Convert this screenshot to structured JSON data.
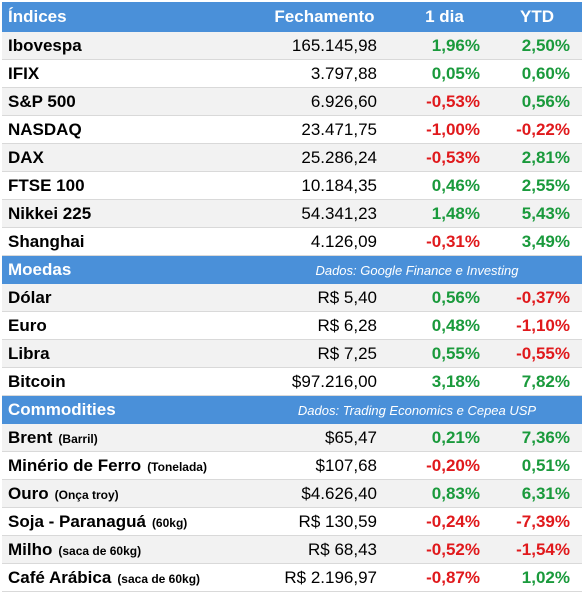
{
  "header": {
    "name": "Índices",
    "close": "Fechamento",
    "day": "1 dia",
    "ytd": "YTD"
  },
  "indices": [
    {
      "name": "Ibovespa",
      "close": "165.145,98",
      "day": "1,96%",
      "ytd": "2,50%"
    },
    {
      "name": "IFIX",
      "close": "3.797,88",
      "day": "0,05%",
      "ytd": "0,60%"
    },
    {
      "name": "S&P 500",
      "close": "6.926,60",
      "day": "-0,53%",
      "ytd": "0,56%"
    },
    {
      "name": "NASDAQ",
      "close": "23.471,75",
      "day": "-1,00%",
      "ytd": "-0,22%"
    },
    {
      "name": "DAX",
      "close": "25.286,24",
      "day": "-0,53%",
      "ytd": "2,81%"
    },
    {
      "name": "FTSE 100",
      "close": "10.184,35",
      "day": "0,46%",
      "ytd": "2,55%"
    },
    {
      "name": "Nikkei 225",
      "close": "54.341,23",
      "day": "1,48%",
      "ytd": "5,43%"
    },
    {
      "name": "Shanghai",
      "close": "4.126,09",
      "day": "-0,31%",
      "ytd": "3,49%"
    }
  ],
  "moedas": {
    "title": "Moedas",
    "source": "Dados: Google Finance e Investing",
    "rows": [
      {
        "name": "Dólar",
        "close": "R$ 5,40",
        "day": "0,56%",
        "ytd": "-0,37%"
      },
      {
        "name": "Euro",
        "close": "R$ 6,28",
        "day": "0,48%",
        "ytd": "-1,10%"
      },
      {
        "name": "Libra",
        "close": "R$ 7,25",
        "day": "0,55%",
        "ytd": "-0,55%"
      },
      {
        "name": "Bitcoin",
        "close": "$97.216,00",
        "day": "3,18%",
        "ytd": "7,82%"
      }
    ]
  },
  "commodities": {
    "title": "Commodities",
    "source": "Dados: Trading Economics e Cepea USP",
    "rows": [
      {
        "name": "Brent",
        "unit": "(Barril)",
        "close": "$65,47",
        "day": "0,21%",
        "ytd": "7,36%"
      },
      {
        "name": "Minério de Ferro",
        "unit": "(Tonelada)",
        "close": "$107,68",
        "day": "-0,20%",
        "ytd": "0,51%"
      },
      {
        "name": "Ouro",
        "unit": "(Onça troy)",
        "close": "$4.626,40",
        "day": "0,83%",
        "ytd": "6,31%"
      },
      {
        "name": "Soja - Paranaguá",
        "unit": "(60kg)",
        "close": "R$ 130,59",
        "day": "-0,24%",
        "ytd": "-7,39%"
      },
      {
        "name": "Milho",
        "unit": "(saca de 60kg)",
        "close": "R$ 68,43",
        "day": "-0,52%",
        "ytd": "-1,54%"
      },
      {
        "name": "Café Arábica",
        "unit": "(saca de 60kg)",
        "close": "R$ 2.196,97",
        "day": "-0,87%",
        "ytd": "1,02%"
      }
    ]
  },
  "colors": {
    "header_bg": "#4a90d9",
    "positive": "#1a9a3c",
    "negative": "#e0191c",
    "zebra": "#f2f2f2"
  }
}
